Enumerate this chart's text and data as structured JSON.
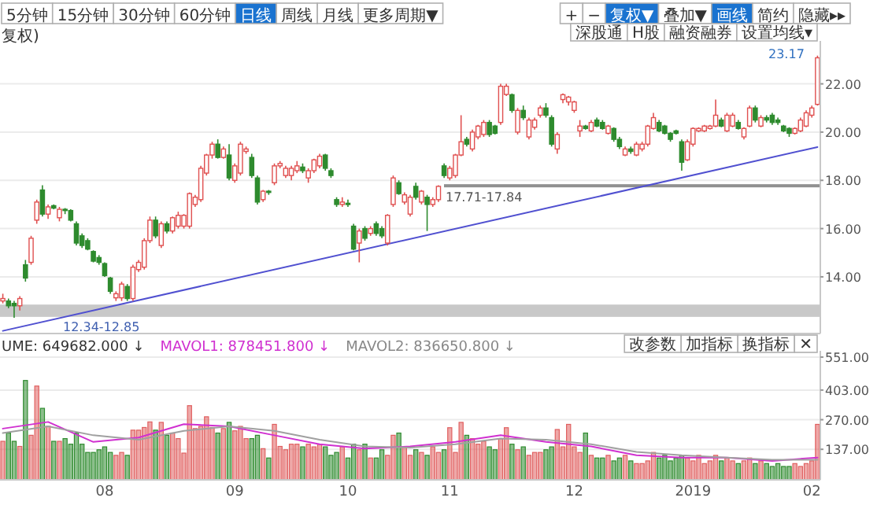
{
  "chart_data": [
    {
      "type": "candlestick",
      "categories": [
        null,
        null,
        null,
        null,
        null,
        null,
        null,
        null,
        null,
        null,
        null,
        null,
        null,
        null,
        null,
        null,
        null,
        null,
        null,
        null,
        null,
        null,
        null,
        null,
        null,
        null,
        null,
        null,
        null,
        null,
        null,
        null,
        null,
        null,
        null,
        null,
        null,
        null,
        null,
        null,
        null,
        null,
        null,
        null,
        null,
        null,
        null,
        null,
        null,
        null,
        null,
        null,
        null,
        null,
        null,
        null,
        null,
        null,
        null,
        null,
        null,
        null,
        null,
        null,
        null,
        null,
        null,
        null,
        null,
        null,
        null,
        null,
        null,
        null,
        null,
        null,
        null,
        null,
        null,
        null,
        null,
        null,
        null,
        null,
        null,
        null,
        null,
        null,
        null,
        null,
        null,
        null,
        null,
        null,
        null,
        null,
        null,
        null,
        null,
        null,
        null,
        null,
        null,
        null,
        null,
        null,
        null,
        null,
        null,
        null,
        null,
        null,
        null,
        null,
        null,
        null,
        null,
        null,
        null,
        null,
        null,
        null,
        null,
        null,
        null,
        null,
        null,
        null,
        null,
        null,
        null,
        null,
        null,
        null,
        null,
        null,
        null,
        null,
        null,
        null,
        null,
        null,
        null,
        null,
        null
      ],
      "ohlc": [
        [
          13.0,
          13.3,
          12.9,
          13.1
        ],
        [
          13.0,
          13.1,
          12.7,
          12.8
        ],
        [
          12.9,
          13.0,
          12.3,
          12.8
        ],
        [
          12.8,
          13.2,
          12.6,
          13.1
        ],
        [
          14.5,
          14.7,
          13.8,
          13.95
        ],
        [
          14.6,
          15.7,
          14.5,
          15.6
        ],
        [
          16.35,
          17.2,
          16.2,
          17.1
        ],
        [
          17.6,
          17.8,
          16.5,
          16.6
        ],
        [
          16.6,
          17.0,
          16.4,
          16.9
        ],
        [
          16.95,
          17.0,
          16.8,
          16.85
        ],
        [
          16.45,
          16.9,
          16.3,
          16.8
        ],
        [
          16.8,
          16.85,
          16.6,
          16.75
        ],
        [
          16.75,
          16.8,
          16.3,
          16.35
        ],
        [
          16.2,
          16.3,
          15.3,
          15.4
        ],
        [
          15.7,
          15.8,
          15.2,
          15.3
        ],
        [
          15.5,
          15.6,
          15.1,
          15.15
        ],
        [
          15.05,
          15.1,
          14.6,
          14.65
        ],
        [
          14.8,
          14.9,
          14.5,
          14.6
        ],
        [
          14.55,
          14.6,
          14.0,
          14.05
        ],
        [
          13.95,
          14.0,
          13.3,
          13.4
        ],
        [
          13.13,
          13.4,
          13.0,
          13.3
        ],
        [
          13.13,
          13.8,
          13.0,
          13.7
        ],
        [
          13.6,
          13.7,
          13.0,
          13.1
        ],
        [
          13.1,
          14.5,
          13.0,
          14.4
        ],
        [
          14.3,
          14.7,
          14.2,
          14.6
        ],
        [
          14.4,
          15.6,
          14.3,
          15.5
        ],
        [
          15.5,
          16.5,
          15.4,
          16.35
        ],
        [
          16.35,
          16.5,
          15.6,
          15.7
        ],
        [
          15.3,
          16.3,
          15.2,
          16.2
        ],
        [
          16.2,
          16.3,
          15.8,
          15.9
        ],
        [
          15.9,
          16.5,
          15.8,
          16.45
        ],
        [
          16.1,
          16.7,
          16.0,
          16.55
        ],
        [
          16.1,
          16.6,
          16.0,
          16.55
        ],
        [
          16.1,
          17.5,
          16.0,
          17.45
        ],
        [
          17.0,
          17.4,
          16.9,
          17.3
        ],
        [
          17.2,
          18.6,
          17.1,
          18.5
        ],
        [
          18.3,
          19.1,
          18.2,
          19.05
        ],
        [
          19.05,
          19.6,
          18.9,
          19.5
        ],
        [
          19.5,
          19.7,
          18.9,
          18.95
        ],
        [
          18.95,
          19.4,
          18.9,
          19.3
        ],
        [
          19.05,
          19.5,
          18.0,
          18.1
        ],
        [
          18.0,
          18.7,
          17.9,
          18.6
        ],
        [
          18.3,
          19.6,
          18.2,
          19.5
        ],
        [
          19.2,
          19.4,
          19.1,
          19.3
        ],
        [
          18.95,
          19.1,
          18.1,
          18.2
        ],
        [
          18.1,
          18.2,
          17.0,
          17.1
        ],
        [
          17.2,
          17.6,
          17.1,
          17.55
        ],
        [
          17.55,
          17.6,
          17.4,
          17.5
        ],
        [
          17.9,
          18.7,
          17.8,
          18.6
        ],
        [
          18.6,
          18.8,
          18.5,
          18.7
        ],
        [
          18.2,
          18.6,
          18.1,
          18.5
        ],
        [
          18.2,
          18.6,
          18.0,
          18.5
        ],
        [
          18.4,
          18.8,
          18.3,
          18.6
        ],
        [
          18.55,
          18.7,
          18.3,
          18.4
        ],
        [
          18.1,
          18.5,
          17.9,
          18.4
        ],
        [
          18.4,
          18.9,
          18.3,
          18.85
        ],
        [
          18.6,
          19.1,
          18.5,
          19.0
        ],
        [
          19.05,
          19.1,
          18.4,
          18.5
        ],
        [
          18.4,
          18.5,
          18.1,
          18.2
        ],
        [
          17.2,
          17.3,
          16.9,
          17.0
        ],
        [
          17.0,
          17.3,
          16.9,
          17.1
        ],
        [
          17.05,
          17.2,
          16.9,
          17.0
        ],
        [
          16.1,
          16.2,
          15.1,
          15.15
        ],
        [
          15.4,
          16.0,
          14.6,
          15.9
        ],
        [
          16.0,
          16.1,
          15.5,
          15.6
        ],
        [
          15.8,
          16.1,
          15.7,
          16.0
        ],
        [
          16.2,
          16.3,
          15.7,
          15.8
        ],
        [
          16.0,
          16.1,
          15.6,
          15.7
        ],
        [
          15.4,
          16.6,
          15.3,
          16.55
        ],
        [
          17.0,
          18.2,
          16.9,
          18.1
        ],
        [
          17.9,
          18.0,
          17.4,
          17.45
        ],
        [
          17.1,
          17.5,
          17.0,
          17.4
        ],
        [
          16.6,
          17.4,
          16.5,
          17.3
        ],
        [
          17.75,
          17.9,
          17.2,
          17.3
        ],
        [
          17.1,
          17.6,
          17.0,
          17.55
        ],
        [
          17.3,
          17.4,
          15.9,
          17.0
        ],
        [
          17.0,
          17.3,
          16.9,
          17.2
        ],
        [
          17.2,
          17.8,
          17.1,
          17.75
        ],
        [
          18.6,
          18.7,
          18.1,
          18.2
        ],
        [
          18.1,
          18.6,
          18.0,
          18.5
        ],
        [
          18.2,
          19.1,
          18.1,
          19.05
        ],
        [
          19.05,
          20.7,
          19.0,
          19.6
        ],
        [
          19.7,
          19.8,
          19.4,
          19.5
        ],
        [
          19.3,
          20.1,
          19.2,
          20.0
        ],
        [
          19.8,
          20.3,
          19.7,
          20.25
        ],
        [
          19.9,
          20.5,
          19.8,
          20.4
        ],
        [
          20.4,
          20.5,
          19.8,
          19.9
        ],
        [
          20.25,
          20.3,
          19.9,
          19.95
        ],
        [
          20.4,
          22.0,
          20.3,
          21.9
        ],
        [
          21.56,
          22.0,
          21.5,
          21.9
        ],
        [
          21.55,
          21.6,
          20.8,
          20.9
        ],
        [
          20.0,
          21.0,
          19.9,
          20.9
        ],
        [
          20.9,
          21.1,
          20.5,
          20.6
        ],
        [
          19.8,
          20.6,
          19.7,
          20.5
        ],
        [
          20.2,
          20.6,
          20.1,
          20.5
        ],
        [
          20.7,
          21.1,
          20.6,
          21.0
        ],
        [
          21.0,
          21.2,
          20.6,
          20.7
        ],
        [
          20.6,
          20.7,
          19.4,
          19.5
        ],
        [
          19.3,
          20.0,
          19.1,
          19.9
        ],
        [
          21.35,
          21.6,
          21.2,
          21.55
        ],
        [
          21.25,
          21.5,
          21.1,
          21.45
        ],
        [
          20.9,
          21.3,
          20.8,
          21.25
        ],
        [
          20.05,
          20.5,
          19.8,
          20.25
        ],
        [
          20.25,
          20.3,
          20.1,
          20.15
        ],
        [
          20.05,
          20.5,
          20.0,
          20.4
        ],
        [
          20.5,
          20.6,
          20.2,
          20.25
        ],
        [
          20.4,
          20.5,
          20.1,
          20.15
        ],
        [
          19.95,
          20.3,
          19.9,
          20.25
        ],
        [
          20.15,
          20.2,
          19.6,
          19.7
        ],
        [
          19.7,
          19.8,
          19.3,
          19.4
        ],
        [
          19.05,
          19.4,
          19.0,
          19.3
        ],
        [
          19.3,
          19.4,
          19.1,
          19.2
        ],
        [
          19.05,
          19.6,
          19.0,
          19.5
        ],
        [
          19.3,
          19.6,
          19.2,
          19.5
        ],
        [
          19.5,
          20.3,
          19.4,
          20.25
        ],
        [
          20.15,
          20.8,
          20.1,
          20.6
        ],
        [
          20.4,
          20.5,
          20.0,
          20.05
        ],
        [
          20.25,
          20.3,
          19.9,
          19.95
        ],
        [
          19.95,
          20.0,
          19.6,
          19.7
        ],
        [
          20.05,
          20.1,
          19.9,
          19.95
        ],
        [
          19.6,
          19.7,
          18.4,
          18.75
        ],
        [
          18.85,
          19.7,
          18.8,
          19.6
        ],
        [
          19.5,
          20.2,
          19.4,
          20.15
        ],
        [
          20.05,
          20.2,
          20.0,
          20.15
        ],
        [
          20.05,
          20.3,
          20.0,
          20.25
        ],
        [
          20.15,
          20.3,
          20.1,
          20.25
        ],
        [
          20.25,
          21.35,
          20.2,
          20.7
        ],
        [
          20.5,
          20.6,
          20.2,
          20.25
        ],
        [
          20.05,
          20.8,
          20.0,
          20.7
        ],
        [
          20.25,
          20.8,
          20.2,
          20.7
        ],
        [
          20.4,
          20.5,
          20.1,
          20.15
        ],
        [
          19.8,
          20.2,
          19.7,
          20.15
        ],
        [
          20.25,
          21.1,
          20.2,
          21.0
        ],
        [
          21.0,
          21.1,
          20.4,
          20.5
        ],
        [
          20.25,
          20.7,
          20.2,
          20.6
        ],
        [
          20.6,
          20.7,
          20.4,
          20.5
        ],
        [
          20.7,
          20.8,
          20.3,
          20.4
        ],
        [
          20.5,
          20.6,
          20.3,
          20.4
        ],
        [
          20.25,
          20.3,
          20.0,
          20.05
        ],
        [
          20.15,
          20.2,
          19.8,
          19.95
        ],
        [
          19.95,
          20.2,
          19.9,
          20.15
        ],
        [
          20.05,
          20.6,
          20.0,
          20.5
        ],
        [
          20.25,
          20.9,
          20.2,
          20.8
        ],
        [
          20.7,
          21.1,
          20.6,
          21.0
        ],
        [
          21.15,
          23.17,
          21.1,
          23.08
        ]
      ],
      "series": [
        {
          "type": "line",
          "color": "#5050d0",
          "values": [
            11.76,
            null,
            null,
            null,
            null,
            null,
            null,
            null,
            null,
            null,
            null,
            null,
            null,
            null,
            null,
            null,
            null,
            null,
            null,
            null,
            null,
            null,
            null,
            null,
            null,
            null,
            null,
            null,
            null,
            null,
            null,
            null,
            null,
            null,
            null,
            null,
            null,
            null,
            null,
            null,
            null,
            null,
            null,
            null,
            null,
            null,
            null,
            null,
            null,
            null,
            null,
            null,
            null,
            null,
            null,
            null,
            null,
            null,
            null,
            null,
            null,
            null,
            null,
            null,
            null,
            null,
            null,
            null,
            null,
            null,
            null,
            null,
            null,
            null,
            null,
            null,
            null,
            null,
            null,
            null,
            null,
            null,
            null,
            null,
            null,
            null,
            null,
            null,
            null,
            null,
            null,
            null,
            null,
            null,
            null,
            null,
            null,
            null,
            null,
            null,
            null,
            null,
            null,
            null,
            null,
            null,
            null,
            null,
            null,
            null,
            null,
            null,
            null,
            null,
            null,
            null,
            null,
            null,
            null,
            null,
            null,
            null,
            null,
            null,
            null,
            null,
            null,
            null,
            null,
            null,
            null,
            null,
            null,
            null,
            null,
            null,
            null,
            null,
            null,
            null,
            null,
            null,
            null,
            null,
            19.38
          ]
        }
      ],
      "ylim": [
        11.65,
        23.65
      ],
      "yticks": [
        {
          "value": 14,
          "label": "14.00"
        },
        {
          "value": 16,
          "label": "16.00"
        },
        {
          "value": 18,
          "label": "18.00"
        },
        {
          "value": 20,
          "label": "20.00"
        },
        {
          "value": 22,
          "label": "22.00"
        }
      ],
      "grid": "y",
      "tick_labels": "y",
      "bands": [
        {
          "axis": "y",
          "from": 12.34,
          "to": 12.85,
          "label": "12.34-12.85",
          "color": "#c8c8c8"
        },
        {
          "axis": "y",
          "from": 17.71,
          "to": 17.84,
          "label": "17.71-17.84",
          "color": "#909090"
        }
      ],
      "annotations": [
        "5分钟",
        "15分钟",
        "30分钟",
        "60分钟",
        "日线",
        "周线",
        "月线",
        "更多周期▼",
        "+",
        "−",
        "复权▼",
        "叠加▼",
        "画线",
        "简约",
        "隐藏▸▸",
        "复权)",
        "深股通",
        "H股",
        "融资融券",
        "设置均线▾",
        "23.17"
      ]
    },
    {
      "type": "bar",
      "categories": [
        null,
        null,
        null,
        null,
        null,
        null,
        null,
        null,
        null,
        null,
        null,
        null,
        null,
        null,
        null,
        null,
        null,
        null,
        "08",
        null,
        null,
        null,
        null,
        null,
        null,
        null,
        null,
        null,
        null,
        null,
        null,
        null,
        null,
        null,
        null,
        null,
        null,
        null,
        null,
        null,
        null,
        "09",
        null,
        null,
        null,
        null,
        null,
        null,
        null,
        null,
        null,
        null,
        null,
        null,
        null,
        null,
        null,
        null,
        null,
        null,
        null,
        "10",
        null,
        null,
        null,
        null,
        null,
        null,
        null,
        null,
        null,
        null,
        null,
        null,
        null,
        null,
        null,
        null,
        null,
        "11",
        null,
        null,
        null,
        null,
        null,
        null,
        null,
        null,
        null,
        null,
        null,
        null,
        null,
        null,
        null,
        null,
        null,
        null,
        null,
        null,
        null,
        "12",
        null,
        null,
        null,
        null,
        null,
        null,
        null,
        null,
        null,
        null,
        null,
        null,
        null,
        null,
        null,
        null,
        null,
        null,
        null,
        null,
        "2019",
        null,
        null,
        null,
        null,
        null,
        null,
        null,
        null,
        null,
        null,
        null,
        null,
        null,
        null,
        null,
        null,
        null,
        null,
        null,
        null,
        "02",
        null
      ],
      "values": [
        173,
        210,
        173,
        150,
        446,
        200,
        421,
        321,
        240,
        173,
        173,
        185,
        160,
        210,
        160,
        123,
        123,
        135,
        148,
        123,
        110,
        123,
        110,
        223,
        223,
        235,
        260,
        223,
        258,
        200,
        210,
        185,
        120,
        333,
        230,
        240,
        283,
        235,
        210,
        230,
        258,
        220,
        240,
        185,
        185,
        200,
        140,
        98,
        249,
        150,
        135,
        160,
        160,
        148,
        160,
        148,
        160,
        148,
        110,
        123,
        148,
        98,
        160,
        135,
        160,
        98,
        98,
        135,
        110,
        200,
        210,
        148,
        110,
        135,
        123,
        110,
        148,
        123,
        135,
        234,
        123,
        258,
        200,
        185,
        160,
        173,
        148,
        135,
        185,
        234,
        160,
        135,
        148,
        110,
        123,
        123,
        135,
        148,
        226,
        148,
        249,
        148,
        123,
        210,
        110,
        98,
        98,
        110,
        85,
        98,
        110,
        85,
        73,
        73,
        85,
        123,
        98,
        110,
        85,
        98,
        110,
        98,
        85,
        110,
        73,
        85,
        110,
        85,
        98,
        85,
        73,
        85,
        98,
        73,
        85,
        73,
        60,
        73,
        60,
        60,
        73,
        60,
        73,
        85,
        249
      ],
      "colors": [
        "#e06060",
        "#2e8b2e",
        "#2e8b2e",
        "#e06060",
        "#2e8b2e",
        "#e06060",
        "#e06060",
        "#2e8b2e",
        "#e06060",
        "#2e8b2e",
        "#e06060",
        "#2e8b2e",
        "#2e8b2e",
        "#2e8b2e",
        "#2e8b2e",
        "#2e8b2e",
        "#2e8b2e",
        "#2e8b2e",
        "#2e8b2e",
        "#2e8b2e",
        "#e06060",
        "#e06060",
        "#2e8b2e",
        "#e06060",
        "#e06060",
        "#e06060",
        "#e06060",
        "#2e8b2e",
        "#e06060",
        "#2e8b2e",
        "#e06060",
        "#e06060",
        "#e06060",
        "#e06060",
        "#e06060",
        "#e06060",
        "#e06060",
        "#e06060",
        "#2e8b2e",
        "#e06060",
        "#2e8b2e",
        "#e06060",
        "#e06060",
        "#e06060",
        "#2e8b2e",
        "#2e8b2e",
        "#e06060",
        "#2e8b2e",
        "#e06060",
        "#e06060",
        "#e06060",
        "#e06060",
        "#e06060",
        "#2e8b2e",
        "#e06060",
        "#e06060",
        "#e06060",
        "#2e8b2e",
        "#2e8b2e",
        "#2e8b2e",
        "#e06060",
        "#2e8b2e",
        "#2e8b2e",
        "#e06060",
        "#2e8b2e",
        "#e06060",
        "#2e8b2e",
        "#2e8b2e",
        "#e06060",
        "#e06060",
        "#2e8b2e",
        "#e06060",
        "#e06060",
        "#2e8b2e",
        "#e06060",
        "#2e8b2e",
        "#e06060",
        "#e06060",
        "#2e8b2e",
        "#e06060",
        "#e06060",
        "#e06060",
        "#2e8b2e",
        "#e06060",
        "#e06060",
        "#e06060",
        "#2e8b2e",
        "#2e8b2e",
        "#e06060",
        "#e06060",
        "#2e8b2e",
        "#e06060",
        "#2e8b2e",
        "#e06060",
        "#e06060",
        "#e06060",
        "#2e8b2e",
        "#2e8b2e",
        "#e06060",
        "#e06060",
        "#e06060",
        "#e06060",
        "#e06060",
        "#2e8b2e",
        "#e06060",
        "#2e8b2e",
        "#2e8b2e",
        "#e06060",
        "#2e8b2e",
        "#2e8b2e",
        "#e06060",
        "#2e8b2e",
        "#e06060",
        "#e06060",
        "#e06060",
        "#e06060",
        "#2e8b2e",
        "#2e8b2e",
        "#2e8b2e",
        "#2e8b2e",
        "#2e8b2e",
        "#e06060",
        "#e06060",
        "#e06060",
        "#e06060",
        "#e06060",
        "#e06060",
        "#2e8b2e",
        "#e06060",
        "#e06060",
        "#2e8b2e",
        "#e06060",
        "#e06060",
        "#2e8b2e",
        "#e06060",
        "#2e8b2e",
        "#2e8b2e",
        "#2e8b2e",
        "#2e8b2e",
        "#2e8b2e",
        "#e06060",
        "#e06060",
        "#e06060",
        "#e06060",
        "#e06060"
      ],
      "series": [
        {
          "type": "line",
          "color": "#d030d0",
          "values": [
            230,
            null,
            null,
            null,
            null,
            null,
            null,
            null,
            260,
            null,
            null,
            null,
            null,
            null,
            null,
            null,
            170,
            null,
            null,
            null,
            null,
            null,
            null,
            null,
            190,
            null,
            null,
            null,
            null,
            null,
            null,
            null,
            250,
            null,
            null,
            null,
            null,
            null,
            null,
            null,
            240,
            null,
            null,
            null,
            null,
            null,
            null,
            null,
            200,
            null,
            null,
            null,
            null,
            null,
            null,
            null,
            160,
            null,
            null,
            null,
            null,
            null,
            null,
            null,
            140,
            null,
            null,
            null,
            null,
            null,
            null,
            null,
            150,
            null,
            null,
            null,
            null,
            null,
            null,
            null,
            170,
            null,
            null,
            null,
            null,
            null,
            null,
            null,
            200,
            null,
            null,
            null,
            null,
            null,
            null,
            null,
            170,
            null,
            null,
            null,
            null,
            null,
            null,
            null,
            150,
            null,
            null,
            null,
            null,
            null,
            null,
            null,
            110,
            null,
            null,
            null,
            null,
            null,
            null,
            null,
            100,
            null,
            null,
            null,
            null,
            null,
            null,
            null,
            100,
            null,
            null,
            null,
            null,
            null,
            null,
            null,
            85,
            null,
            null,
            null,
            null,
            null,
            null,
            null,
            100
          ]
        },
        {
          "type": "line",
          "color": "#a0a0a0",
          "values": [
            210,
            null,
            null,
            null,
            null,
            null,
            null,
            null,
            240,
            null,
            null,
            null,
            null,
            null,
            null,
            null,
            200,
            null,
            null,
            null,
            null,
            null,
            null,
            null,
            180,
            null,
            null,
            null,
            null,
            null,
            null,
            null,
            220,
            null,
            null,
            null,
            null,
            null,
            null,
            null,
            240,
            null,
            null,
            null,
            null,
            null,
            null,
            null,
            220,
            null,
            null,
            null,
            null,
            null,
            null,
            null,
            180,
            null,
            null,
            null,
            null,
            null,
            null,
            null,
            150,
            null,
            null,
            null,
            null,
            null,
            null,
            null,
            145,
            null,
            null,
            null,
            null,
            null,
            null,
            null,
            160,
            null,
            null,
            null,
            null,
            null,
            null,
            null,
            185,
            null,
            null,
            null,
            null,
            null,
            null,
            null,
            180,
            null,
            null,
            null,
            null,
            null,
            null,
            null,
            160,
            null,
            null,
            null,
            null,
            null,
            null,
            null,
            125,
            null,
            null,
            null,
            null,
            null,
            null,
            null,
            110,
            null,
            null,
            null,
            null,
            null,
            null,
            null,
            100,
            null,
            null,
            null,
            null,
            null,
            null,
            null,
            90,
            null,
            null,
            null,
            null,
            null,
            null,
            null,
            90
          ]
        }
      ],
      "ylim": [
        0,
        565
      ],
      "yticks": [
        {
          "value": 137,
          "label": "137.00"
        },
        {
          "value": 270,
          "label": "270.00"
        },
        {
          "value": 403,
          "label": "403.00"
        },
        {
          "value": 551,
          "label": "551.00"
        }
      ],
      "grid": "y",
      "annotations": [
        "UME: 649682.000 ↓",
        "MAVOL1: 878451.800 ↓",
        "MAVOL2: 836650.800 ↓",
        "改参数",
        "加指标",
        "换指标",
        "✕"
      ]
    }
  ]
}
